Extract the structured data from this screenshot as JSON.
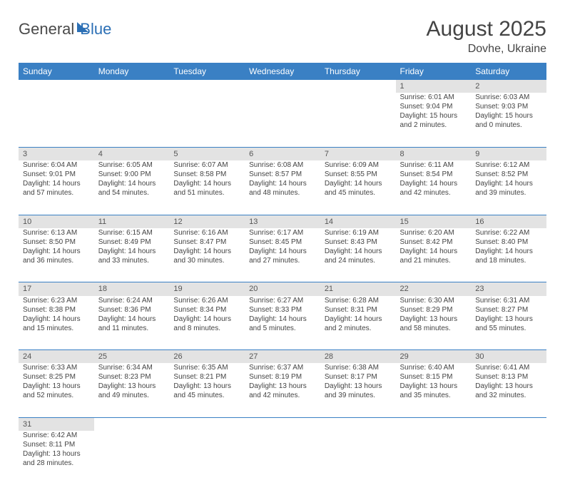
{
  "brand": {
    "part1": "General",
    "part2": "Blue"
  },
  "title": "August 2025",
  "location": "Dovhe, Ukraine",
  "colors": {
    "header_bg": "#3a80c4",
    "header_text": "#ffffff",
    "daynum_bg": "#e3e3e3",
    "border": "#3a80c4",
    "brand_accent": "#2b6fb5",
    "text": "#444444"
  },
  "typography": {
    "title_size": 30,
    "location_size": 16,
    "th_size": 12,
    "cell_size": 10
  },
  "weekdays": [
    "Sunday",
    "Monday",
    "Tuesday",
    "Wednesday",
    "Thursday",
    "Friday",
    "Saturday"
  ],
  "weeks": [
    {
      "nums": [
        "",
        "",
        "",
        "",
        "",
        "1",
        "2"
      ],
      "cells": [
        null,
        null,
        null,
        null,
        null,
        {
          "sunrise": "Sunrise: 6:01 AM",
          "sunset": "Sunset: 9:04 PM",
          "daylight": "Daylight: 15 hours and 2 minutes."
        },
        {
          "sunrise": "Sunrise: 6:03 AM",
          "sunset": "Sunset: 9:03 PM",
          "daylight": "Daylight: 15 hours and 0 minutes."
        }
      ]
    },
    {
      "nums": [
        "3",
        "4",
        "5",
        "6",
        "7",
        "8",
        "9"
      ],
      "cells": [
        {
          "sunrise": "Sunrise: 6:04 AM",
          "sunset": "Sunset: 9:01 PM",
          "daylight": "Daylight: 14 hours and 57 minutes."
        },
        {
          "sunrise": "Sunrise: 6:05 AM",
          "sunset": "Sunset: 9:00 PM",
          "daylight": "Daylight: 14 hours and 54 minutes."
        },
        {
          "sunrise": "Sunrise: 6:07 AM",
          "sunset": "Sunset: 8:58 PM",
          "daylight": "Daylight: 14 hours and 51 minutes."
        },
        {
          "sunrise": "Sunrise: 6:08 AM",
          "sunset": "Sunset: 8:57 PM",
          "daylight": "Daylight: 14 hours and 48 minutes."
        },
        {
          "sunrise": "Sunrise: 6:09 AM",
          "sunset": "Sunset: 8:55 PM",
          "daylight": "Daylight: 14 hours and 45 minutes."
        },
        {
          "sunrise": "Sunrise: 6:11 AM",
          "sunset": "Sunset: 8:54 PM",
          "daylight": "Daylight: 14 hours and 42 minutes."
        },
        {
          "sunrise": "Sunrise: 6:12 AM",
          "sunset": "Sunset: 8:52 PM",
          "daylight": "Daylight: 14 hours and 39 minutes."
        }
      ]
    },
    {
      "nums": [
        "10",
        "11",
        "12",
        "13",
        "14",
        "15",
        "16"
      ],
      "cells": [
        {
          "sunrise": "Sunrise: 6:13 AM",
          "sunset": "Sunset: 8:50 PM",
          "daylight": "Daylight: 14 hours and 36 minutes."
        },
        {
          "sunrise": "Sunrise: 6:15 AM",
          "sunset": "Sunset: 8:49 PM",
          "daylight": "Daylight: 14 hours and 33 minutes."
        },
        {
          "sunrise": "Sunrise: 6:16 AM",
          "sunset": "Sunset: 8:47 PM",
          "daylight": "Daylight: 14 hours and 30 minutes."
        },
        {
          "sunrise": "Sunrise: 6:17 AM",
          "sunset": "Sunset: 8:45 PM",
          "daylight": "Daylight: 14 hours and 27 minutes."
        },
        {
          "sunrise": "Sunrise: 6:19 AM",
          "sunset": "Sunset: 8:43 PM",
          "daylight": "Daylight: 14 hours and 24 minutes."
        },
        {
          "sunrise": "Sunrise: 6:20 AM",
          "sunset": "Sunset: 8:42 PM",
          "daylight": "Daylight: 14 hours and 21 minutes."
        },
        {
          "sunrise": "Sunrise: 6:22 AM",
          "sunset": "Sunset: 8:40 PM",
          "daylight": "Daylight: 14 hours and 18 minutes."
        }
      ]
    },
    {
      "nums": [
        "17",
        "18",
        "19",
        "20",
        "21",
        "22",
        "23"
      ],
      "cells": [
        {
          "sunrise": "Sunrise: 6:23 AM",
          "sunset": "Sunset: 8:38 PM",
          "daylight": "Daylight: 14 hours and 15 minutes."
        },
        {
          "sunrise": "Sunrise: 6:24 AM",
          "sunset": "Sunset: 8:36 PM",
          "daylight": "Daylight: 14 hours and 11 minutes."
        },
        {
          "sunrise": "Sunrise: 6:26 AM",
          "sunset": "Sunset: 8:34 PM",
          "daylight": "Daylight: 14 hours and 8 minutes."
        },
        {
          "sunrise": "Sunrise: 6:27 AM",
          "sunset": "Sunset: 8:33 PM",
          "daylight": "Daylight: 14 hours and 5 minutes."
        },
        {
          "sunrise": "Sunrise: 6:28 AM",
          "sunset": "Sunset: 8:31 PM",
          "daylight": "Daylight: 14 hours and 2 minutes."
        },
        {
          "sunrise": "Sunrise: 6:30 AM",
          "sunset": "Sunset: 8:29 PM",
          "daylight": "Daylight: 13 hours and 58 minutes."
        },
        {
          "sunrise": "Sunrise: 6:31 AM",
          "sunset": "Sunset: 8:27 PM",
          "daylight": "Daylight: 13 hours and 55 minutes."
        }
      ]
    },
    {
      "nums": [
        "24",
        "25",
        "26",
        "27",
        "28",
        "29",
        "30"
      ],
      "cells": [
        {
          "sunrise": "Sunrise: 6:33 AM",
          "sunset": "Sunset: 8:25 PM",
          "daylight": "Daylight: 13 hours and 52 minutes."
        },
        {
          "sunrise": "Sunrise: 6:34 AM",
          "sunset": "Sunset: 8:23 PM",
          "daylight": "Daylight: 13 hours and 49 minutes."
        },
        {
          "sunrise": "Sunrise: 6:35 AM",
          "sunset": "Sunset: 8:21 PM",
          "daylight": "Daylight: 13 hours and 45 minutes."
        },
        {
          "sunrise": "Sunrise: 6:37 AM",
          "sunset": "Sunset: 8:19 PM",
          "daylight": "Daylight: 13 hours and 42 minutes."
        },
        {
          "sunrise": "Sunrise: 6:38 AM",
          "sunset": "Sunset: 8:17 PM",
          "daylight": "Daylight: 13 hours and 39 minutes."
        },
        {
          "sunrise": "Sunrise: 6:40 AM",
          "sunset": "Sunset: 8:15 PM",
          "daylight": "Daylight: 13 hours and 35 minutes."
        },
        {
          "sunrise": "Sunrise: 6:41 AM",
          "sunset": "Sunset: 8:13 PM",
          "daylight": "Daylight: 13 hours and 32 minutes."
        }
      ]
    },
    {
      "nums": [
        "31",
        "",
        "",
        "",
        "",
        "",
        ""
      ],
      "cells": [
        {
          "sunrise": "Sunrise: 6:42 AM",
          "sunset": "Sunset: 8:11 PM",
          "daylight": "Daylight: 13 hours and 28 minutes."
        },
        null,
        null,
        null,
        null,
        null,
        null
      ]
    }
  ]
}
